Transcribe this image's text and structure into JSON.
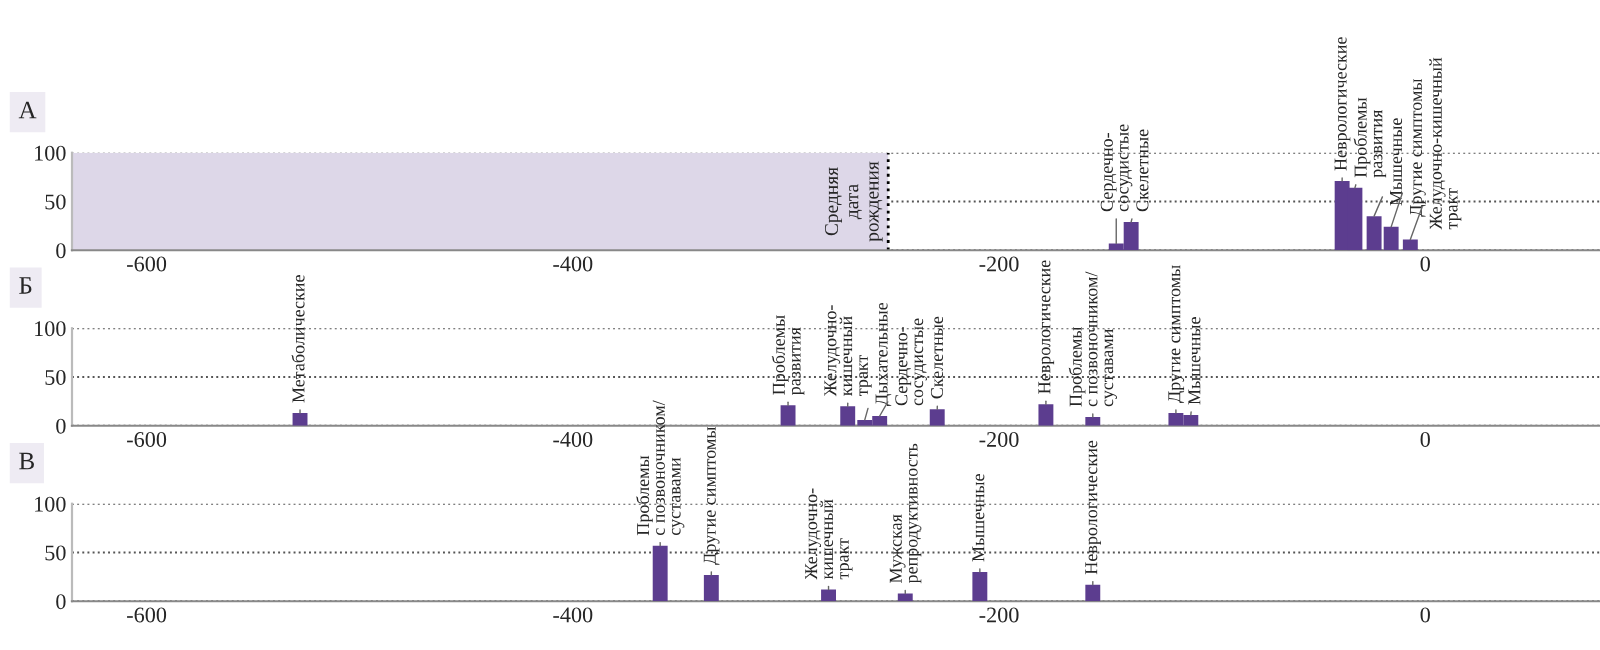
{
  "chart_data": [
    {
      "type": "bar",
      "title": "А",
      "x": [
        -145,
        -138,
        -39,
        -33,
        -24,
        -16,
        -7
      ],
      "values": [
        7,
        29,
        71,
        64,
        35,
        24,
        11
      ],
      "color": "#5c3d8f",
      "xlim": [
        -635,
        82
      ],
      "xticks": [
        -600,
        -400,
        -200,
        0
      ],
      "ylim": [
        0,
        100
      ],
      "yticks": [
        0,
        50,
        100
      ],
      "grid": "y",
      "bands": [
        {
          "axis": "x",
          "from": -635,
          "to": -252,
          "color": "#ddd7e8"
        }
      ],
      "ref_lines": [
        {
          "axis": "x",
          "value": -252,
          "label": "Средняя\nдата\nрождения",
          "line_style": "dotted"
        }
      ],
      "annotations": [
        {
          "text": "Сердечно-\nсосудистые",
          "x": -145,
          "y": 7
        },
        {
          "text": "Скелетные",
          "x": -138,
          "y": 29
        },
        {
          "text": "Неврологические",
          "x": -39,
          "y": 71
        },
        {
          "text": "Проблемы\nразвития",
          "x": -33,
          "y": 64
        },
        {
          "text": "Мышечные",
          "x": -24,
          "y": 35
        },
        {
          "text": "Другие симптомы",
          "x": -16,
          "y": 24
        },
        {
          "text": "Желудочно-кишечный\nтракт",
          "x": -7,
          "y": 11
        }
      ]
    },
    {
      "type": "bar",
      "title": "Б",
      "x": [
        -528,
        -299,
        -271,
        -263,
        -256,
        -229,
        -178,
        -156,
        -117,
        -110
      ],
      "values": [
        13,
        21,
        20,
        6,
        10,
        17,
        22,
        9,
        13,
        11
      ],
      "color": "#5c3d8f",
      "xlim": [
        -635,
        82
      ],
      "xticks": [
        -600,
        -400,
        -200,
        0
      ],
      "ylim": [
        0,
        100
      ],
      "yticks": [
        0,
        50,
        100
      ],
      "grid": "y",
      "annotations": [
        {
          "text": "Метаболические",
          "x": -528,
          "y": 13
        },
        {
          "text": "Проблемы\nразвития",
          "x": -299,
          "y": 21
        },
        {
          "text": "Желудочно-\nкишечный\nтракт",
          "x": -271,
          "y": 20
        },
        {
          "text": "Дыхательные",
          "x": -263,
          "y": 6
        },
        {
          "text": "Сердечно-\nсосудистые",
          "x": -256,
          "y": 10
        },
        {
          "text": "Скелетные",
          "x": -229,
          "y": 17
        },
        {
          "text": "Неврологические",
          "x": -178,
          "y": 22
        },
        {
          "text": "Проблемы\nс позвоночником/\nсуставами",
          "x": -156,
          "y": 9
        },
        {
          "text": "Другие симптомы",
          "x": -117,
          "y": 13
        },
        {
          "text": "Мышечные",
          "x": -110,
          "y": 11
        }
      ]
    },
    {
      "type": "bar",
      "title": "В",
      "x": [
        -359,
        -335,
        -280,
        -244,
        -209,
        -156
      ],
      "values": [
        57,
        27,
        12,
        8,
        30,
        17
      ],
      "color": "#5c3d8f",
      "xlim": [
        -635,
        82
      ],
      "xticks": [
        -600,
        -400,
        -200,
        0
      ],
      "ylim": [
        0,
        100
      ],
      "yticks": [
        0,
        50,
        100
      ],
      "grid": "y",
      "annotations": [
        {
          "text": "Проблемы\nс позвоночником/\nсуставами",
          "x": -359,
          "y": 57
        },
        {
          "text": "Другие симптомы",
          "x": -335,
          "y": 27
        },
        {
          "text": "Желудочно-\nкишечный\nтракт",
          "x": -280,
          "y": 12
        },
        {
          "text": "Мужская\nрепродуктивность",
          "x": -244,
          "y": 8
        },
        {
          "text": "Мышечные",
          "x": -209,
          "y": 30
        },
        {
          "text": "Неврологические",
          "x": -156,
          "y": 17
        }
      ]
    }
  ]
}
